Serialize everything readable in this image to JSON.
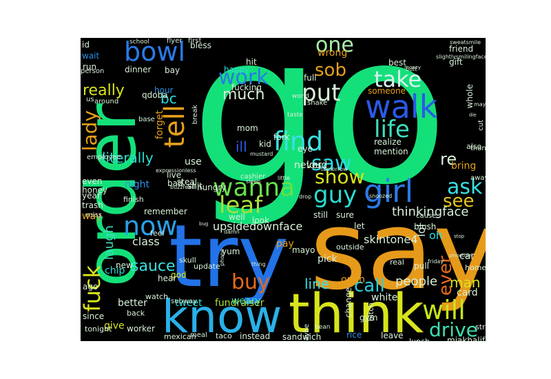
{
  "background_color": "#000000",
  "words": [
    {
      "t": "go",
      "c": "#14e07a"
    },
    {
      "t": "say",
      "c": "#e69a1a"
    },
    {
      "t": "try",
      "c": "#2272e8"
    },
    {
      "t": "order",
      "c": "#14e07a"
    },
    {
      "t": "think",
      "c": "#d8e41c"
    },
    {
      "t": "know",
      "c": "#2ab0e8"
    },
    {
      "t": "walk",
      "c": "#2a5ae8"
    },
    {
      "t": "bowl",
      "c": "#2a7ae8"
    },
    {
      "t": "now",
      "c": "#2aa0e8"
    },
    {
      "t": "girl",
      "c": "#2a7ae8"
    },
    {
      "t": "find",
      "c": "#3ae0e0"
    },
    {
      "t": "life",
      "c": "#3ae0c0"
    },
    {
      "t": "take",
      "c": "#d8f0f0"
    },
    {
      "t": "tell",
      "c": "#e6a01a"
    },
    {
      "t": "fuck",
      "c": "#d8e41c"
    },
    {
      "t": "wanna",
      "c": "#66e048"
    },
    {
      "t": "leaf",
      "c": "#a8e03a"
    },
    {
      "t": "guy",
      "c": "#2adcd0"
    },
    {
      "t": "will",
      "c": "#c8e41c"
    },
    {
      "t": "work",
      "c": "#2a7ae8"
    },
    {
      "t": "put",
      "c": "#d8f0d8"
    },
    {
      "t": "sob",
      "c": "#e6a01a"
    },
    {
      "t": "one",
      "c": "#a8f0a8"
    },
    {
      "t": "buy",
      "c": "#e66a1a"
    },
    {
      "t": "show",
      "c": "#d8e41c"
    },
    {
      "t": "saw",
      "c": "#2adce0"
    },
    {
      "t": "lady",
      "c": "#e6a01a"
    },
    {
      "t": "ask",
      "c": "#3ae0e0"
    },
    {
      "t": "see",
      "c": "#e6c81a"
    },
    {
      "t": "drive",
      "c": "#3ae0b0"
    },
    {
      "t": "call",
      "c": "#2ad0e0"
    },
    {
      "t": "ever",
      "c": "#e66a1a"
    },
    {
      "t": "really",
      "c": "#d8e41c"
    },
    {
      "t": "much",
      "c": "#d8f0d8"
    },
    {
      "t": "sauce",
      "c": "#3ae0e0"
    },
    {
      "t": "people",
      "c": "#d8f0d8"
    },
    {
      "t": "line",
      "c": "#3ae0e0"
    },
    {
      "t": "laugh",
      "c": "#3ae0c0"
    },
    {
      "t": "literally",
      "c": "#2adcd0"
    },
    {
      "t": "thinkingface",
      "c": "#d8f0d8"
    },
    {
      "t": "skintone4",
      "c": "#d8f0d8"
    },
    {
      "t": "upsidedownface",
      "c": "#d8f0d8"
    },
    {
      "t": "re",
      "c": "#d8f0d8"
    },
    {
      "t": "bc",
      "c": "#2adce0"
    },
    {
      "t": "ill",
      "c": "#2a5ae8"
    },
    {
      "t": "man",
      "c": "#d8e41c"
    },
    {
      "t": "class",
      "c": "#d8f0d8"
    },
    {
      "t": "night",
      "c": "#2a90e8"
    },
    {
      "t": "use",
      "c": "#d8f0d8"
    },
    {
      "t": "give",
      "c": "#d8e41c"
    },
    {
      "t": "better",
      "c": "#d8f0d8"
    },
    {
      "t": "chip",
      "c": "#2adcd0"
    },
    {
      "t": "weary",
      "c": "#2adcd0"
    },
    {
      "t": "pay",
      "c": "#e6a01a"
    },
    {
      "t": "tweet",
      "c": "#2adce0"
    },
    {
      "t": "fundraiser",
      "c": "#a8e03a"
    },
    {
      "t": "oh",
      "c": "#2adce0"
    },
    {
      "t": "lol",
      "c": "#d8f0d8"
    },
    {
      "t": "never",
      "c": "#d8f0d8"
    },
    {
      "t": "realize",
      "c": "#d8f0d8"
    },
    {
      "t": "mention",
      "c": "#d8f0d8"
    },
    {
      "t": "forget",
      "c": "#e6a01a"
    },
    {
      "t": "loud",
      "c": "#d8f0d8"
    },
    {
      "t": "white",
      "c": "#d8f0d8"
    },
    {
      "t": "card",
      "c": "#d8f0d8"
    },
    {
      "t": "bring",
      "c": "#e6a01a"
    },
    {
      "t": "wrong",
      "c": "#e6a01a"
    },
    {
      "t": "happy",
      "c": "#2adce0"
    },
    {
      "t": "hit",
      "c": "#d8f0d8"
    },
    {
      "t": "full",
      "c": "#d8f0d8"
    },
    {
      "t": "best",
      "c": "#d8f0d8"
    },
    {
      "t": "friend",
      "c": "#d8f0d8"
    },
    {
      "t": "gift",
      "c": "#d8f0d8"
    },
    {
      "t": "someone",
      "c": "#e6a01a"
    },
    {
      "t": "fucking",
      "c": "#d8f0d8"
    },
    {
      "t": "dinner",
      "c": "#d8f0d8"
    },
    {
      "t": "bay",
      "c": "#d8f0d8"
    },
    {
      "t": "wait",
      "c": "#2a90e8"
    },
    {
      "t": "run",
      "c": "#d8f0d8"
    },
    {
      "t": "id",
      "c": "#d8f0d8"
    },
    {
      "t": "flyer",
      "c": "#d8f0d8"
    },
    {
      "t": "first",
      "c": "#d8f0d8"
    },
    {
      "t": "bless",
      "c": "#d8f0d8"
    },
    {
      "t": "school",
      "c": "#d8f0d8"
    },
    {
      "t": "hour",
      "c": "#2a90e8"
    },
    {
      "t": "qdoba",
      "c": "#d8f0d8"
    },
    {
      "t": "around",
      "c": "#d8f0d8"
    },
    {
      "t": "person",
      "c": "#d8f0d8"
    },
    {
      "t": "mom",
      "c": "#d8f0d8"
    },
    {
      "t": "kid",
      "c": "#d8f0d8"
    },
    {
      "t": "fork",
      "c": "#d8f0d8"
    },
    {
      "t": "eye",
      "c": "#d8f0d8"
    },
    {
      "t": "live",
      "c": "#d8f0d8"
    },
    {
      "t": "steal",
      "c": "#d8f0d8"
    },
    {
      "t": "bad",
      "c": "#d8f0d8"
    },
    {
      "t": "shit",
      "c": "#d8f0d8"
    },
    {
      "t": "hungry",
      "c": "#d8f0d8"
    },
    {
      "t": "remember",
      "c": "#d8f0d8"
    },
    {
      "t": "feel",
      "c": "#d8f0d8"
    },
    {
      "t": "skull",
      "c": "#d8f0d8"
    },
    {
      "t": "update",
      "c": "#d8f0d8"
    },
    {
      "t": "god",
      "c": "#d8e41c"
    },
    {
      "t": "even",
      "c": "#d8f0d8"
    },
    {
      "t": "honey",
      "c": "#d8f0d8"
    },
    {
      "t": "year",
      "c": "#d8f0d8"
    },
    {
      "t": "trash",
      "c": "#d8f0d8"
    },
    {
      "t": "way",
      "c": "#e6a01a"
    },
    {
      "t": "finish",
      "c": "#d8f0d8"
    },
    {
      "t": "new",
      "c": "#d8f0d8"
    },
    {
      "t": "ago",
      "c": "#d8f0d8"
    },
    {
      "t": "hear",
      "c": "#d8f0d8"
    },
    {
      "t": "watch",
      "c": "#d8f0d8"
    },
    {
      "t": "back",
      "c": "#d8f0d8"
    },
    {
      "t": "since",
      "c": "#d8f0d8"
    },
    {
      "t": "tonight",
      "c": "#d8f0d8"
    },
    {
      "t": "worker",
      "c": "#d8f0d8"
    },
    {
      "t": "mexican",
      "c": "#d8f0d8"
    },
    {
      "t": "meal",
      "c": "#d8f0d8"
    },
    {
      "t": "taco",
      "c": "#d8f0d8"
    },
    {
      "t": "instead",
      "c": "#d8f0d8"
    },
    {
      "t": "sandwich",
      "c": "#d8f0d8"
    },
    {
      "t": "rice",
      "c": "#2a90e8"
    },
    {
      "t": "leave",
      "c": "#d8f0d8"
    },
    {
      "t": "lunch",
      "c": "#d8f0d8"
    },
    {
      "t": "miakhalifa",
      "c": "#d8f0d8"
    },
    {
      "t": "street",
      "c": "#d8f0d8"
    },
    {
      "t": "cashier",
      "c": "#d8f0d8"
    },
    {
      "t": "look",
      "c": "#d8f0d8"
    },
    {
      "t": "well",
      "c": "#d8f0d8"
    },
    {
      "t": "still",
      "c": "#d8f0d8"
    },
    {
      "t": "sure",
      "c": "#d8f0d8"
    },
    {
      "t": "let",
      "c": "#d8f0d8"
    },
    {
      "t": "blush",
      "c": "#d8f0d8"
    },
    {
      "t": "cause",
      "c": "#d8f0d8"
    },
    {
      "t": "pick",
      "c": "#d8f0d8"
    },
    {
      "t": "real",
      "c": "#d8f0d8"
    },
    {
      "t": "pull",
      "c": "#d8f0d8"
    },
    {
      "t": "home",
      "c": "#d8f0d8"
    },
    {
      "t": "car",
      "c": "#d8f0d8"
    },
    {
      "t": "open",
      "c": "#e6a01a"
    },
    {
      "t": "change",
      "c": "#d8f0d8"
    },
    {
      "t": "gym",
      "c": "#d8f0d8"
    },
    {
      "t": "bitch",
      "c": "#d8f0d8"
    },
    {
      "t": "bean",
      "c": "#d8f0d8"
    },
    {
      "t": "maybe",
      "c": "#d8f0d8"
    },
    {
      "t": "yum",
      "c": "#d8f0d8"
    },
    {
      "t": "mayo",
      "c": "#d8f0d8"
    },
    {
      "t": "outside",
      "c": "#d8f0d8"
    },
    {
      "t": "subway",
      "c": "#d8f0d8"
    },
    {
      "t": "whole",
      "c": "#d8f0d8"
    },
    {
      "t": "also",
      "c": "#d8f0d8"
    },
    {
      "t": "thank",
      "c": "#d8f0d8"
    },
    {
      "t": "away",
      "c": "#d8f0d8"
    },
    {
      "t": "cut",
      "c": "#d8f0d8"
    },
    {
      "t": "world",
      "c": "#d8f0d8"
    },
    {
      "t": "base",
      "c": "#d8f0d8"
    },
    {
      "t": "break",
      "c": "#d8f0d8"
    },
    {
      "t": "employee",
      "c": "#d8f0d8"
    },
    {
      "t": "us",
      "c": "#d8f0d8"
    },
    {
      "t": "miss",
      "c": "#d8f0d8"
    },
    {
      "t": "shake",
      "c": "#d8f0d8"
    },
    {
      "t": "taste",
      "c": "#d8f0d8"
    },
    {
      "t": "mustard",
      "c": "#d8f0d8"
    },
    {
      "t": "sweatsmile",
      "c": "#d8f0d8"
    },
    {
      "t": "tomorrow",
      "c": "#d8f0d8"
    },
    {
      "t": "expressionless",
      "c": "#d8f0d8"
    },
    {
      "t": "slightlysmilingface",
      "c": "#d8f0d8"
    },
    {
      "t": "butt",
      "c": "#d8f0d8"
    },
    {
      "t": "money",
      "c": "#d8f0d8"
    },
    {
      "t": "may",
      "c": "#d8f0d8"
    },
    {
      "t": "die",
      "c": "#d8f0d8"
    },
    {
      "t": "sleep",
      "c": "#d8f0d8"
    },
    {
      "t": "little",
      "c": "#d8f0d8"
    },
    {
      "t": "damn",
      "c": "#d8f0d8"
    },
    {
      "t": "phone",
      "c": "#d8f0d8"
    },
    {
      "t": "thing",
      "c": "#d8f0d8"
    },
    {
      "t": "friday",
      "c": "#d8f0d8"
    },
    {
      "t": "smoothie",
      "c": "#d8f0d8"
    },
    {
      "t": "snoozed",
      "c": "#d8f0d8"
    },
    {
      "t": "buzzfeed",
      "c": "#d8f0d8"
    },
    {
      "t": "drop",
      "c": "#d8f0d8"
    },
    {
      "t": "bug",
      "c": "#d8f0d8"
    },
    {
      "t": "stop",
      "c": "#d8f0d8"
    },
    {
      "t": "leathershirt",
      "c": "#d8f0d8"
    },
    {
      "t": "baked",
      "c": "#d8f0d8"
    }
  ]
}
